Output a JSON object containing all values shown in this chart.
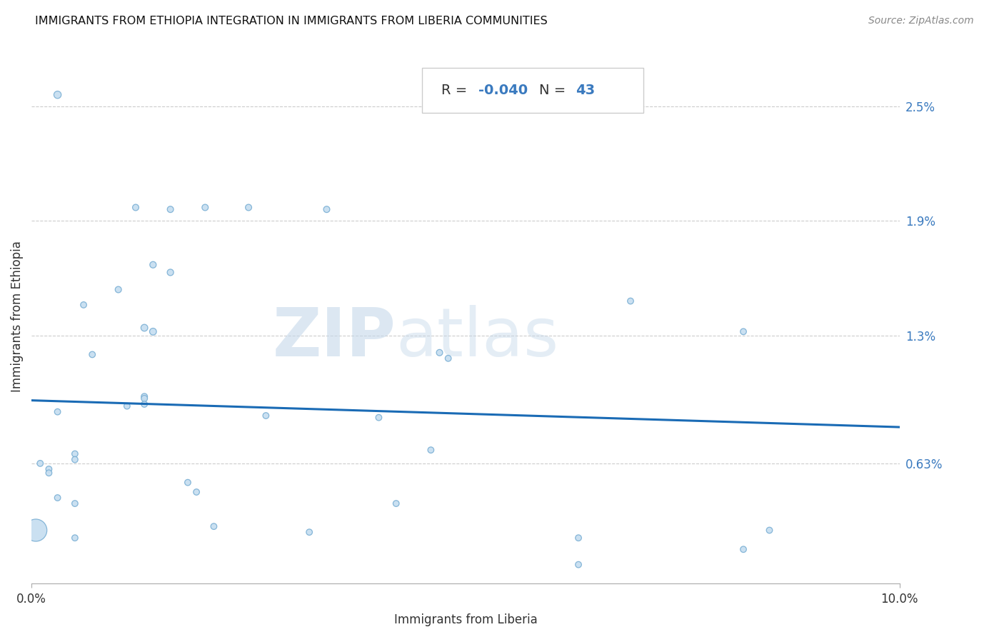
{
  "title": "IMMIGRANTS FROM ETHIOPIA INTEGRATION IN IMMIGRANTS FROM LIBERIA COMMUNITIES",
  "source": "Source: ZipAtlas.com",
  "xlabel": "Immigrants from Liberia",
  "ylabel": "Immigrants from Ethiopia",
  "R_value": "-0.040",
  "N_value": "43",
  "xlim": [
    0.0,
    0.1
  ],
  "ylim": [
    0.0,
    0.028
  ],
  "ytick_labels": [
    "0.63%",
    "1.3%",
    "1.9%",
    "2.5%"
  ],
  "ytick_values": [
    0.0063,
    0.013,
    0.019,
    0.025
  ],
  "grid_color": "#cccccc",
  "dot_facecolor": "#c5ddf0",
  "dot_edgecolor": "#7aafd4",
  "line_color": "#1a6bb5",
  "watermark_zip": "ZIP",
  "watermark_atlas": "atlas",
  "line_y0": 0.0096,
  "line_y1": 0.0082,
  "points": [
    [
      0.003,
      0.0256
    ],
    [
      0.012,
      0.0197
    ],
    [
      0.016,
      0.0196
    ],
    [
      0.02,
      0.0197
    ],
    [
      0.025,
      0.0197
    ],
    [
      0.034,
      0.0196
    ],
    [
      0.014,
      0.0167
    ],
    [
      0.016,
      0.0163
    ],
    [
      0.01,
      0.0154
    ],
    [
      0.006,
      0.0146
    ],
    [
      0.013,
      0.0134
    ],
    [
      0.014,
      0.0132
    ],
    [
      0.007,
      0.012
    ],
    [
      0.069,
      0.0148
    ],
    [
      0.082,
      0.0132
    ],
    [
      0.047,
      0.0121
    ],
    [
      0.048,
      0.0118
    ],
    [
      0.013,
      0.0098
    ],
    [
      0.013,
      0.0097
    ],
    [
      0.013,
      0.0094
    ],
    [
      0.011,
      0.0093
    ],
    [
      0.003,
      0.009
    ],
    [
      0.027,
      0.0088
    ],
    [
      0.04,
      0.0087
    ],
    [
      0.046,
      0.007
    ],
    [
      0.005,
      0.0068
    ],
    [
      0.005,
      0.0065
    ],
    [
      0.001,
      0.0063
    ],
    [
      0.002,
      0.006
    ],
    [
      0.002,
      0.0058
    ],
    [
      0.018,
      0.0053
    ],
    [
      0.019,
      0.0048
    ],
    [
      0.003,
      0.0045
    ],
    [
      0.005,
      0.0042
    ],
    [
      0.042,
      0.0042
    ],
    [
      0.0005,
      0.0028
    ],
    [
      0.021,
      0.003
    ],
    [
      0.032,
      0.0027
    ],
    [
      0.005,
      0.0024
    ],
    [
      0.063,
      0.0024
    ],
    [
      0.085,
      0.0028
    ],
    [
      0.063,
      0.001
    ],
    [
      0.082,
      0.0018
    ]
  ],
  "point_sizes": [
    55,
    40,
    40,
    40,
    40,
    40,
    42,
    42,
    40,
    38,
    48,
    48,
    38,
    38,
    38,
    40,
    38,
    40,
    40,
    38,
    38,
    38,
    38,
    38,
    38,
    38,
    38,
    38,
    38,
    38,
    38,
    38,
    38,
    38,
    38,
    500,
    38,
    38,
    38,
    38,
    38,
    38,
    38
  ]
}
